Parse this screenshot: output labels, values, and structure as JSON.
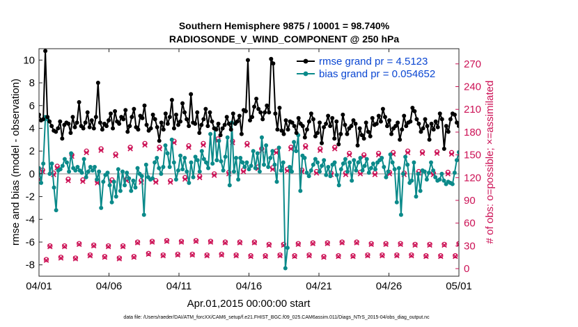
{
  "chart_data": {
    "type": "line",
    "title_line1": "Southern Hemisphere 9875 / 10001 = 98.740%",
    "title_line2": "RADIOSONDE_V_WIND_COMPONENT @ 250 hPa",
    "xlabel": "Apr.01,2015 00:00:00 start",
    "ylabel_left": "rmse and bias (model - observation)",
    "ylabel_right": "# of obs: o=possible; ×=assimilated",
    "footnote": "data file: /Users/raeder/DAI/ATM_forcXX/CAM6_setup/f.e21.FHIST_BGC.f09_025.CAM6assim.011/Diags_NTrS_2015-04/obs_diag_output.nc",
    "xlim": [
      0,
      30
    ],
    "ylim_left": [
      -9,
      11
    ],
    "ylim_right": [
      -10,
      290
    ],
    "x_ticks": [
      0,
      5,
      10,
      15,
      20,
      25,
      30
    ],
    "x_tick_labels": [
      "04/01",
      "04/06",
      "04/11",
      "04/16",
      "04/21",
      "04/26",
      "05/01"
    ],
    "y_ticks_left": [
      -8,
      -6,
      -4,
      -2,
      0,
      2,
      4,
      6,
      8,
      10
    ],
    "y_ticks_right": [
      0,
      30,
      60,
      90,
      120,
      150,
      180,
      210,
      240,
      270
    ],
    "legend": [
      {
        "label": "rmse grand pr = 4.5123",
        "color": "#000000"
      },
      {
        "label": "bias grand pr = 0.054652",
        "color": "#0b8a8a"
      }
    ],
    "colors": {
      "rmse": "#000000",
      "bias": "#0b8a8a",
      "obs": "#cc1155",
      "zero": "#b0b0b0"
    },
    "series": [
      {
        "name": "rmse",
        "values": [
          5.2,
          4.7,
          4.8,
          10.8,
          5.0,
          4.6,
          4.2,
          3.8,
          3.7,
          4.0,
          4.6,
          3.1,
          4.3,
          4.5,
          4.4,
          3.6,
          5.0,
          4.1,
          4.5,
          6.3,
          4.2,
          4.0,
          4.5,
          5.4,
          4.1,
          4.7,
          4.0,
          5.0,
          8.0,
          4.5,
          3.9,
          4.4,
          4.2,
          4.7,
          5.3,
          4.0,
          5.5,
          4.6,
          4.4,
          5.0,
          4.8,
          5.6,
          3.7,
          4.2,
          5.0,
          5.7,
          4.1,
          3.9,
          5.1,
          4.9,
          6.0,
          4.3,
          3.8,
          4.0,
          5.2,
          4.8,
          4.1,
          2.9,
          4.5,
          3.9,
          5.3,
          4.4,
          5.0,
          6.5,
          4.0,
          5.2,
          4.3,
          4.6,
          6.2,
          5.4,
          4.8,
          4.2,
          7.0,
          4.5,
          4.4,
          5.4,
          3.6,
          4.3,
          4.8,
          5.7,
          4.2,
          5.4,
          4.6,
          4.0,
          3.9,
          4.4,
          3.4,
          4.0,
          4.3,
          5.0,
          4.4,
          3.9,
          5.3,
          4.4,
          4.6,
          5.1,
          3.5,
          5.6,
          5.5,
          10.0,
          4.7,
          5.0,
          5.9,
          6.6,
          5.7,
          5.4,
          4.8,
          5.4,
          6.0,
          5.4,
          10.1,
          9.7,
          5.3,
          3.9,
          5.8,
          3.8,
          3.5,
          4.7,
          3.9,
          4.6,
          4.5,
          4.2,
          3.6,
          4.9,
          4.4,
          4.2,
          3.2,
          3.9,
          4.6,
          5.3,
          4.8,
          3.3,
          3.6,
          4.5,
          2.7,
          4.1,
          4.4,
          5.1,
          4.2,
          4.9,
          3.1,
          4.6,
          2.6,
          3.5,
          5.2,
          4.3,
          3.5,
          4.0,
          4.2,
          4.7,
          4.4,
          2.5,
          4.0,
          3.4,
          3.1,
          4.5,
          3.7,
          3.3,
          4.9,
          4.3,
          4.4,
          5.1,
          4.6,
          5.7,
          5.0,
          4.2,
          4.7,
          3.5,
          4.0,
          4.2,
          4.5,
          3.0,
          3.9,
          5.1,
          4.2,
          4.5,
          4.6,
          5.8,
          5.5,
          4.8,
          4.4,
          3.7,
          4.0,
          4.8,
          4.2,
          3.0,
          4.4,
          3.9,
          4.6,
          4.1,
          5.3,
          4.8,
          2.2,
          4.2,
          3.7,
          4.8,
          5.3,
          5.2,
          4.5,
          4.2
        ]
      },
      {
        "name": "bias",
        "values": [
          0.5,
          -0.8,
          0.9,
          5.0,
          4.8,
          0.0,
          0.9,
          -1.2,
          -3.2,
          0.3,
          0.4,
          0.7,
          1.3,
          1.0,
          0.2,
          1.8,
          0.5,
          0.3,
          0.6,
          0.3,
          0.1,
          1.3,
          -0.3,
          0.2,
          0.6,
          0.3,
          0.6,
          -0.5,
          0.2,
          -3.0,
          -0.7,
          -0.1,
          0.1,
          -1.0,
          -2.5,
          -0.7,
          -2.0,
          0.4,
          -1.5,
          0.2,
          -1.0,
          0.1,
          -0.4,
          -1.5,
          -0.6,
          -1.2,
          0.5,
          0.0,
          -0.2,
          -3.6,
          0.8,
          -0.3,
          -0.5,
          -0.4,
          1.0,
          1.4,
          0.5,
          0.0,
          0.6,
          2.5,
          1.8,
          0.6,
          3.0,
          1.0,
          -0.5,
          0.3,
          1.6,
          0.4,
          1.4,
          0.2,
          -0.8,
          1.0,
          -0.3,
          1.5,
          1.2,
          0.2,
          2.0,
          1.3,
          1.0,
          0.5,
          3.5,
          0.9,
          4.0,
          1.2,
          2.9,
          1.1,
          0.3,
          1.5,
          3.2,
          -1.0,
          4.5,
          0.2,
          1.4,
          -0.5,
          1.4,
          1.0,
          0.6,
          1.0,
          0.4,
          0.7,
          2.0,
          0.5,
          1.8,
          0.2,
          3.2,
          0.8,
          2.5,
          0.6,
          1.4,
          2.0,
          0.8,
          -0.7,
          2.3,
          0.3,
          1.0,
          -8.3,
          -6.5,
          0.6,
          0.2,
          2.8,
          2.0,
          3.4,
          -1.5,
          1.6,
          1.4,
          0.1,
          -0.2,
          0.3,
          0.8,
          1.3,
          1.0,
          0.2,
          0.7,
          1.2,
          -0.1,
          0.6,
          -0.2,
          0.8,
          1.0,
          -0.1,
          -1.0,
          0.4,
          0.9,
          1.3,
          0.2,
          1.0,
          -0.6,
          1.2,
          0.3,
          1.0,
          1.4,
          0.3,
          0.7,
          1.3,
          0.1,
          0.5,
          0.9,
          0.4,
          1.0,
          1.2,
          1.4,
          0.6,
          -0.3,
          0.2,
          1.7,
          1.0,
          0.4,
          -2.5,
          0.5,
          -3.6,
          0.0,
          1.5,
          0.8,
          -0.8,
          -0.6,
          1.0,
          -2.0,
          0.0,
          -1.5,
          0.3,
          0.2,
          -0.5,
          0.1,
          1.0,
          0.3,
          -0.3,
          -0.6,
          -0.5,
          0.0,
          -0.6,
          -0.9,
          -0.7,
          -0.8,
          -0.9,
          0.1,
          1.2,
          1.9
        ]
      },
      {
        "name": "obs_possible",
        "values": [
          119,
          130,
          12,
          30,
          126,
          135,
          15,
          30,
          118,
          150,
          14,
          33,
          117,
          155,
          18,
          31,
          115,
          158,
          16,
          30,
          117,
          151,
          14,
          30,
          118,
          160,
          16,
          35,
          116,
          165,
          20,
          36,
          116,
          160,
          18,
          37,
          116,
          168,
          19,
          36,
          120,
          162,
          19,
          37,
          122,
          165,
          18,
          36,
          125,
          171,
          19,
          35,
          127,
          168,
          18,
          35,
          130,
          165,
          17,
          35,
          134,
          158,
          17,
          32,
          133,
          155,
          18,
          32,
          131,
          160,
          17,
          33,
          130,
          162,
          18,
          34,
          128,
          158,
          16,
          34,
          126,
          160,
          17,
          35,
          126,
          152,
          17,
          35,
          127,
          150,
          18,
          33,
          126,
          152,
          18,
          33,
          127,
          153,
          18,
          33,
          126,
          155,
          18,
          32,
          128,
          154,
          17,
          32,
          126,
          154,
          17,
          32,
          127,
          153,
          17,
          33
        ]
      },
      {
        "name": "obs_assimilated",
        "values": [
          118,
          128,
          11,
          29,
          124,
          133,
          14,
          29,
          116,
          148,
          13,
          32,
          115,
          153,
          17,
          30,
          113,
          156,
          15,
          29,
          115,
          149,
          13,
          29,
          116,
          158,
          15,
          34,
          114,
          163,
          19,
          35,
          114,
          158,
          17,
          36,
          114,
          166,
          18,
          35,
          118,
          160,
          18,
          36,
          120,
          163,
          17,
          35,
          123,
          169,
          18,
          34,
          125,
          166,
          17,
          34,
          128,
          163,
          16,
          34,
          132,
          156,
          16,
          31,
          131,
          153,
          17,
          31,
          129,
          158,
          16,
          32,
          128,
          160,
          17,
          33,
          126,
          156,
          15,
          33,
          124,
          158,
          16,
          34,
          124,
          150,
          16,
          34,
          125,
          148,
          17,
          32,
          124,
          150,
          17,
          32,
          125,
          151,
          17,
          32,
          124,
          153,
          17,
          31,
          126,
          152,
          16,
          31,
          124,
          152,
          16,
          31,
          125,
          151,
          16,
          32
        ]
      }
    ]
  }
}
